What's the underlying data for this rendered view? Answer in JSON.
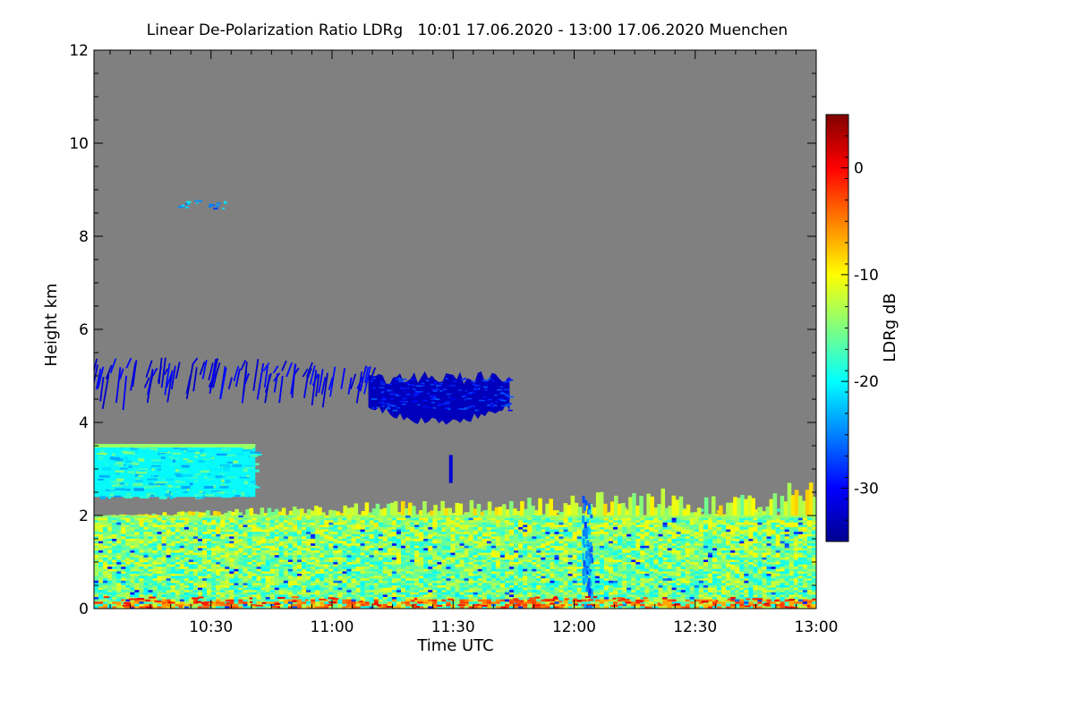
{
  "chart_data": {
    "type": "heatmap",
    "title": "Linear De-Polarization Ratio LDRg   10:01 17.06.2020 - 13:00 17.06.2020 Muenchen",
    "xlabel": "Time UTC",
    "ylabel": "Height km",
    "xlim_minutes_utc": [
      601,
      780
    ],
    "ylim_km": [
      0,
      12
    ],
    "x_ticks": [
      {
        "minutes": 630,
        "label": "10:30"
      },
      {
        "minutes": 660,
        "label": "11:00"
      },
      {
        "minutes": 690,
        "label": "11:30"
      },
      {
        "minutes": 720,
        "label": "12:00"
      },
      {
        "minutes": 750,
        "label": "12:30"
      },
      {
        "minutes": 780,
        "label": "13:00"
      }
    ],
    "y_ticks": [
      {
        "value": 0,
        "label": "0"
      },
      {
        "value": 2,
        "label": "2"
      },
      {
        "value": 4,
        "label": "4"
      },
      {
        "value": 6,
        "label": "6"
      },
      {
        "value": 8,
        "label": "8"
      },
      {
        "value": 10,
        "label": "10"
      },
      {
        "value": 12,
        "label": "12"
      }
    ],
    "background_no_signal_color": "#808080",
    "colorbar": {
      "label": "LDRg dB",
      "range_db": [
        -35,
        5
      ],
      "ticks": [
        {
          "value": 0,
          "label": "0"
        },
        {
          "value": -10,
          "label": "-10"
        },
        {
          "value": -20,
          "label": "-20"
        },
        {
          "value": -30,
          "label": "-30"
        }
      ],
      "colormap": [
        "#00008f",
        "#0000ff",
        "#0080ff",
        "#00ffff",
        "#80ff80",
        "#ffff00",
        "#ff8000",
        "#ff0000",
        "#800000"
      ]
    },
    "features": [
      {
        "name": "boundary layer aerosol",
        "t_start": 601,
        "t_end": 780,
        "h_bottom_km": 0.0,
        "h_top_km": 2.0,
        "ldr_db": -14
      },
      {
        "name": "elevated aerosol layer",
        "t_start": 601,
        "t_end": 641,
        "h_bottom_km": 2.4,
        "h_top_km": 3.5,
        "ldr_db": -20
      },
      {
        "name": "ice cloud",
        "t_start": 669,
        "t_end": 704,
        "h_bottom_km": 3.9,
        "h_top_km": 5.1,
        "ldr_db": -33
      },
      {
        "name": "virga streaks",
        "t_start": 601,
        "t_end": 671,
        "h_bottom_km": 4.3,
        "h_top_km": 5.4,
        "ldr_db": -32
      },
      {
        "name": "high thin cloud",
        "t_start": 621,
        "t_end": 634,
        "h_bottom_km": 8.6,
        "h_top_km": 8.8,
        "ldr_db": -24
      },
      {
        "name": "convective plume",
        "t_start": 723,
        "t_end": 726,
        "h_bottom_km": 0.0,
        "h_top_km": 2.5,
        "ldr_db": -25
      }
    ]
  }
}
